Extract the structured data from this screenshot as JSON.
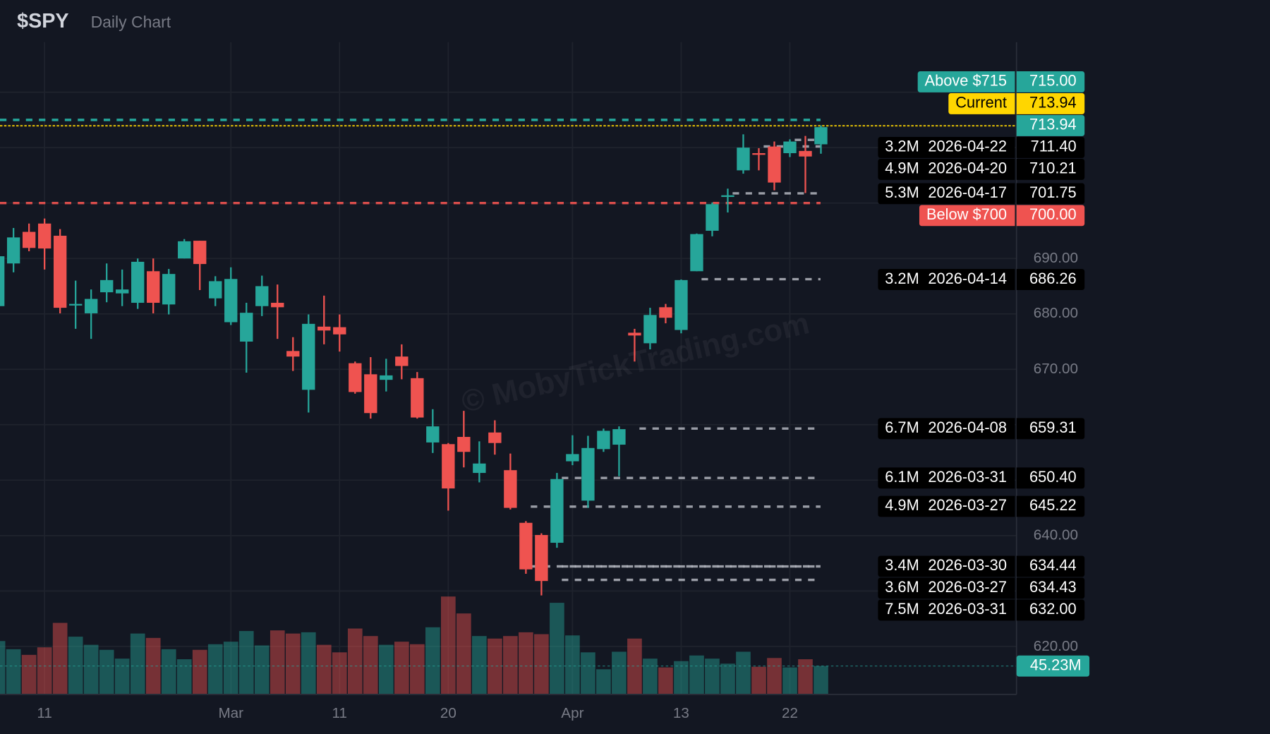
{
  "header": {
    "symbol": "$SPY",
    "subtitle": "Daily Chart"
  },
  "watermark": "© MobyTickTrading.com",
  "colors": {
    "background": "#131722",
    "up": "#26a69a",
    "down": "#ef5350",
    "current": "#ffd600",
    "level": "#b2b5be",
    "label_bg": "#000000"
  },
  "chart_data": {
    "type": "candlestick",
    "title": "",
    "ylim": [
      618,
      723
    ],
    "y_ticks": [
      620,
      630,
      640,
      650,
      660,
      670,
      680,
      690,
      700,
      710,
      720
    ],
    "grid": true,
    "x_ticks": [
      {
        "index": 3,
        "label": "11"
      },
      {
        "index": 15,
        "label": "Mar"
      },
      {
        "index": 22,
        "label": "11"
      },
      {
        "index": 29,
        "label": "20"
      },
      {
        "index": 37,
        "label": "Apr"
      },
      {
        "index": 44,
        "label": "13"
      },
      {
        "index": 51,
        "label": "22"
      }
    ],
    "ohlc": [
      [
        681.4,
        690.5,
        680.5,
        690.4
      ],
      [
        689.1,
        695.5,
        687.5,
        693.8
      ],
      [
        694.8,
        696.3,
        691.3,
        691.9
      ],
      [
        696.3,
        697.2,
        688.0,
        691.8
      ],
      [
        694.1,
        695.3,
        680.1,
        681.1
      ],
      [
        681.6,
        686.0,
        677.3,
        681.8
      ],
      [
        680.1,
        684.4,
        675.5,
        682.7
      ],
      [
        683.9,
        689.1,
        682.1,
        686.1
      ],
      [
        683.7,
        688.0,
        681.4,
        684.4
      ],
      [
        682.0,
        690.0,
        680.9,
        689.4
      ],
      [
        687.7,
        690.0,
        680.1,
        682.0
      ],
      [
        681.7,
        688.1,
        679.9,
        687.2
      ],
      [
        690.0,
        693.5,
        690.0,
        693.1
      ],
      [
        693.2,
        693.2,
        684.3,
        689.0
      ],
      [
        682.8,
        686.8,
        681.4,
        685.9
      ],
      [
        678.5,
        688.4,
        678.0,
        686.3
      ],
      [
        675.0,
        682.0,
        669.4,
        680.2
      ],
      [
        681.4,
        686.9,
        679.6,
        685.0
      ],
      [
        682.0,
        685.3,
        675.5,
        681.2
      ],
      [
        673.3,
        675.8,
        669.7,
        672.3
      ],
      [
        666.3,
        679.9,
        662.2,
        678.2
      ],
      [
        677.7,
        683.3,
        674.5,
        677.0
      ],
      [
        677.6,
        679.9,
        673.2,
        676.3
      ],
      [
        671.1,
        671.4,
        665.6,
        665.9
      ],
      [
        669.1,
        672.2,
        661.1,
        662.1
      ],
      [
        668.1,
        671.9,
        666.0,
        668.9
      ],
      [
        672.3,
        674.5,
        668.2,
        670.6
      ],
      [
        668.4,
        669.5,
        661.1,
        661.3
      ],
      [
        656.8,
        662.8,
        654.9,
        659.7
      ],
      [
        656.5,
        656.7,
        644.5,
        648.5
      ],
      [
        657.8,
        662.5,
        652.3,
        655.1
      ],
      [
        651.3,
        657.0,
        649.6,
        653.0
      ],
      [
        658.6,
        660.8,
        654.6,
        656.7
      ],
      [
        651.8,
        654.8,
        644.7,
        645.0
      ],
      [
        642.3,
        642.6,
        633.1,
        633.9
      ],
      [
        640.1,
        640.4,
        629.2,
        631.8
      ],
      [
        638.7,
        651.3,
        637.8,
        650.2
      ],
      [
        653.4,
        658.1,
        652.7,
        654.7
      ],
      [
        646.3,
        658.0,
        645.0,
        655.8
      ],
      [
        655.6,
        659.3,
        655.1,
        658.9
      ],
      [
        656.4,
        659.7,
        650.7,
        659.2
      ],
      [
        676.6,
        677.3,
        671.4,
        676.1
      ],
      [
        674.7,
        681.1,
        673.6,
        679.8
      ],
      [
        681.2,
        681.8,
        678.3,
        679.3
      ],
      [
        677.1,
        686.2,
        676.5,
        686.1
      ],
      [
        687.7,
        694.5,
        687.7,
        694.4
      ],
      [
        695.0,
        700.1,
        694.0,
        699.8
      ],
      [
        701.1,
        702.6,
        698.3,
        701.4
      ],
      [
        705.9,
        712.4,
        705.3,
        710.0
      ],
      [
        709.0,
        709.9,
        705.9,
        708.7
      ],
      [
        710.2,
        711.1,
        702.3,
        703.7
      ],
      [
        709.0,
        711.5,
        708.3,
        711.1
      ],
      [
        709.4,
        712.1,
        701.8,
        708.4
      ],
      [
        710.6,
        714.0,
        708.9,
        713.7
      ]
    ],
    "volume_millions": [
      85,
      72,
      63,
      75,
      114,
      92,
      79,
      71,
      57,
      97,
      90,
      72,
      56,
      71,
      80,
      84,
      101,
      78,
      102,
      97,
      99,
      79,
      67,
      105,
      93,
      79,
      84,
      80,
      107,
      156,
      129,
      93,
      89,
      93,
      99,
      96,
      146,
      94,
      67,
      40,
      68,
      89,
      57,
      43,
      53,
      62,
      57,
      49,
      68,
      44,
      58,
      43,
      56,
      45.23
    ],
    "volume_label": "45.23M"
  },
  "levels": [
    {
      "kind": "above",
      "label": "Above $715",
      "price": 715.0,
      "price_text": "715.00"
    },
    {
      "kind": "current",
      "label": "Current",
      "price": 713.94,
      "price_text": "713.94"
    },
    {
      "kind": "last",
      "label": "",
      "price": 713.94,
      "price_text": "713.94",
      "anchor": true
    },
    {
      "kind": "volume",
      "volume": "3.2M",
      "date": "2026-04-22",
      "price": 711.4,
      "price_text": "711.40",
      "start_index": 51
    },
    {
      "kind": "volume",
      "volume": "4.9M",
      "date": "2026-04-20",
      "price": 710.21,
      "price_text": "710.21",
      "start_index": 49
    },
    {
      "kind": "volume",
      "volume": "5.3M",
      "date": "2026-04-17",
      "price": 701.75,
      "price_text": "701.75",
      "start_index": 47
    },
    {
      "kind": "below",
      "label": "Below $700",
      "price": 700.0,
      "price_text": "700.00"
    },
    {
      "kind": "volume",
      "volume": "3.2M",
      "date": "2026-04-14",
      "price": 686.26,
      "price_text": "686.26",
      "start_index": 45
    },
    {
      "kind": "volume",
      "volume": "6.7M",
      "date": "2026-04-08",
      "price": 659.31,
      "price_text": "659.31",
      "start_index": 41
    },
    {
      "kind": "volume",
      "volume": "6.1M",
      "date": "2026-03-31",
      "price": 650.4,
      "price_text": "650.40",
      "start_index": 36
    },
    {
      "kind": "volume",
      "volume": "4.9M",
      "date": "2026-03-27",
      "price": 645.22,
      "price_text": "645.22",
      "start_index": 34
    },
    {
      "kind": "volume",
      "volume": "3.4M",
      "date": "2026-03-30",
      "price": 634.44,
      "price_text": "634.44",
      "start_index": 34
    },
    {
      "kind": "volume",
      "volume": "3.6M",
      "date": "2026-03-27",
      "price": 634.43,
      "price_text": "634.43",
      "start_index": 36
    },
    {
      "kind": "volume",
      "volume": "7.5M",
      "date": "2026-03-31",
      "price": 632.0,
      "price_text": "632.00",
      "start_index": 36
    }
  ]
}
